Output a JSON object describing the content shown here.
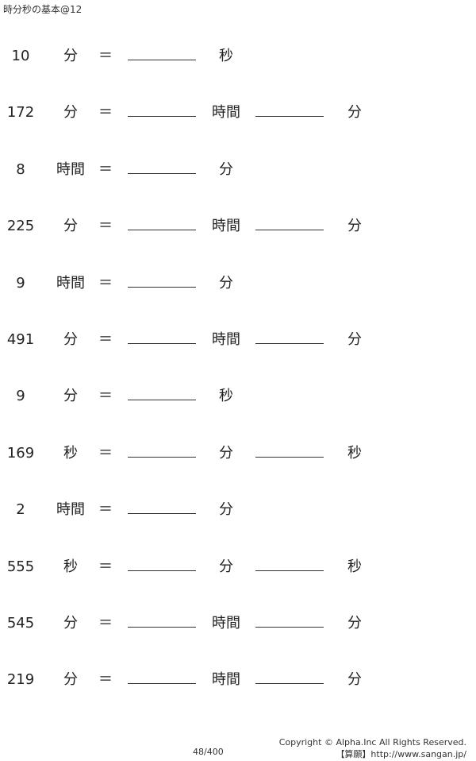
{
  "title": "時分秒の基本@12",
  "equals": "＝",
  "problems": [
    {
      "number": "10",
      "unit": "分",
      "answer_units": [
        "秒"
      ]
    },
    {
      "number": "172",
      "unit": "分",
      "answer_units": [
        "時間",
        "分"
      ]
    },
    {
      "number": "8",
      "unit": "時間",
      "answer_units": [
        "分"
      ]
    },
    {
      "number": "225",
      "unit": "分",
      "answer_units": [
        "時間",
        "分"
      ]
    },
    {
      "number": "9",
      "unit": "時間",
      "answer_units": [
        "分"
      ]
    },
    {
      "number": "491",
      "unit": "分",
      "answer_units": [
        "時間",
        "分"
      ]
    },
    {
      "number": "9",
      "unit": "分",
      "answer_units": [
        "秒"
      ]
    },
    {
      "number": "169",
      "unit": "秒",
      "answer_units": [
        "分",
        "秒"
      ]
    },
    {
      "number": "2",
      "unit": "時間",
      "answer_units": [
        "分"
      ]
    },
    {
      "number": "555",
      "unit": "秒",
      "answer_units": [
        "分",
        "秒"
      ]
    },
    {
      "number": "545",
      "unit": "分",
      "answer_units": [
        "時間",
        "分"
      ]
    },
    {
      "number": "219",
      "unit": "分",
      "answer_units": [
        "時間",
        "分"
      ]
    }
  ],
  "footer": {
    "page": "48/400",
    "copyright": "Copyright © Alpha.Inc All Rights Reserved.",
    "site": "【算願】http://www.sangan.jp/"
  }
}
